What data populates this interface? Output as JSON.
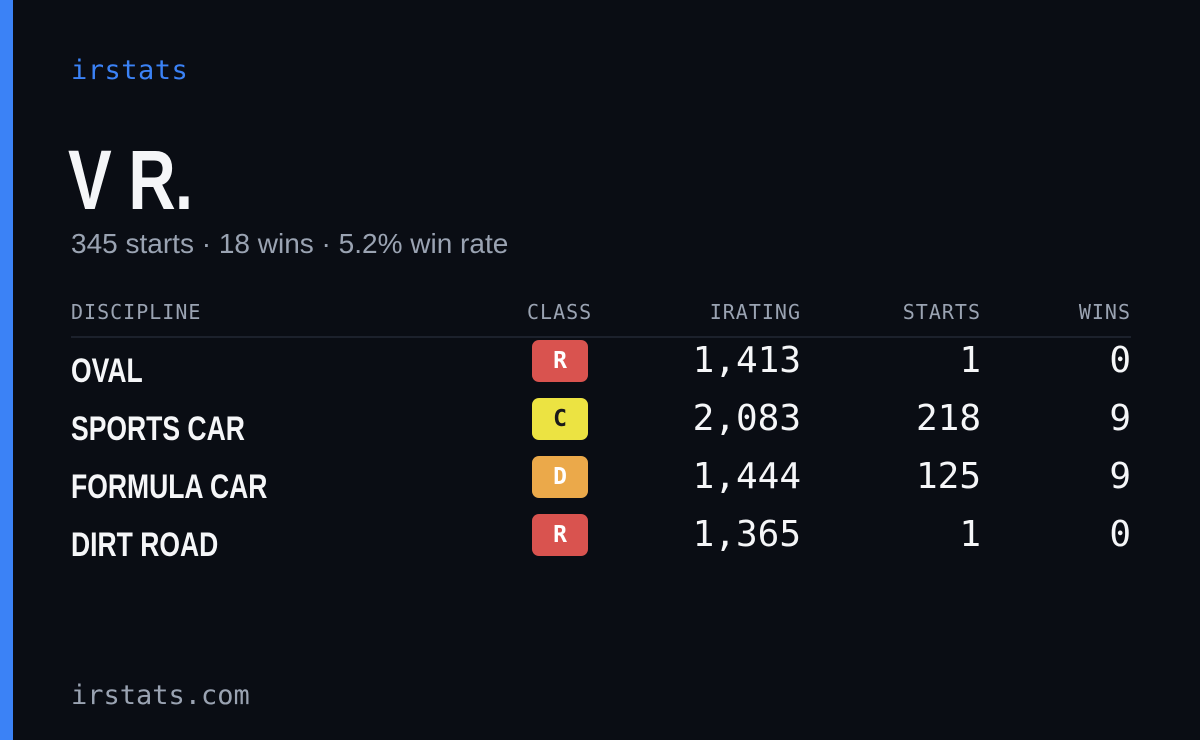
{
  "brand": "irstats",
  "driver": {
    "name": "V R.",
    "summary": "345 starts · 18 wins · 5.2% win rate"
  },
  "table": {
    "headers": {
      "discipline": "DISCIPLINE",
      "class": "CLASS",
      "irating": "IRATING",
      "starts": "STARTS",
      "wins": "WINS"
    },
    "rows": [
      {
        "discipline": "OVAL",
        "class": "R",
        "class_color": "#d9534f",
        "class_text_color": "#ffffff",
        "irating": "1,413",
        "starts": "1",
        "wins": "0"
      },
      {
        "discipline": "SPORTS CAR",
        "class": "C",
        "class_color": "#ece342",
        "class_text_color": "#1a1a1a",
        "irating": "2,083",
        "starts": "218",
        "wins": "9"
      },
      {
        "discipline": "FORMULA CAR",
        "class": "D",
        "class_color": "#eba94a",
        "class_text_color": "#ffffff",
        "irating": "1,444",
        "starts": "125",
        "wins": "9"
      },
      {
        "discipline": "DIRT ROAD",
        "class": "R",
        "class_color": "#d9534f",
        "class_text_color": "#ffffff",
        "irating": "1,365",
        "starts": "1",
        "wins": "0"
      }
    ]
  },
  "footer": {
    "domain": "irstats.com"
  },
  "colors": {
    "accent": "#3b82f6",
    "background": "#0a0d14",
    "muted_text": "#9aa3b2"
  }
}
